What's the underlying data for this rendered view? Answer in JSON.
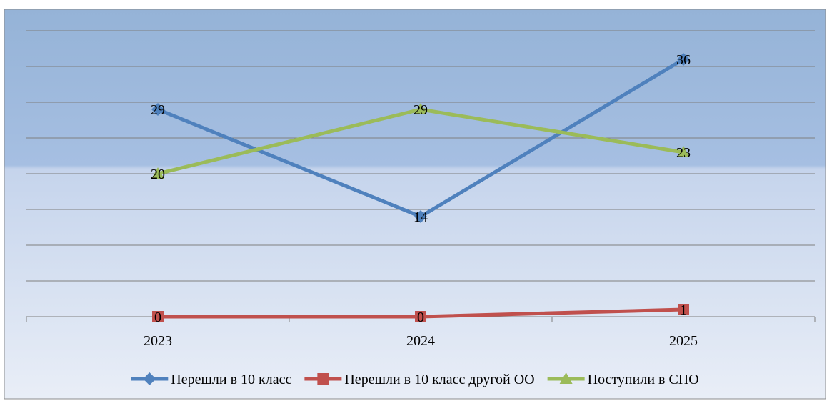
{
  "chart_data": {
    "type": "line",
    "title": "",
    "xlabel": "",
    "ylabel": "",
    "categories": [
      "2023",
      "2024",
      "2025"
    ],
    "ylim": [
      0,
      40
    ],
    "y_grid_step": 5,
    "grid": true,
    "legend_position": "bottom",
    "series": [
      {
        "name": "Перешли  в 10 класс",
        "values": [
          29,
          14,
          36
        ],
        "color": "#4F81BD",
        "marker": "diamond"
      },
      {
        "name": "Перешли  в 10 класс другой ОО",
        "values": [
          0,
          0,
          1
        ],
        "color": "#C0504D",
        "marker": "square"
      },
      {
        "name": "Поступили в СПО",
        "values": [
          20,
          29,
          23
        ],
        "color": "#9BBB59",
        "marker": "triangle"
      }
    ],
    "data_labels": [
      [
        "29",
        "14",
        "36"
      ],
      [
        "0",
        "0",
        "1"
      ],
      [
        "20",
        "29",
        "23"
      ]
    ],
    "colors": {
      "background_top": "#95B3D7",
      "background_bottom": "#E9EEF7",
      "gridline": "#7F7F7F",
      "axis": "#7F7F7F",
      "border": "#8C8C8C"
    }
  }
}
